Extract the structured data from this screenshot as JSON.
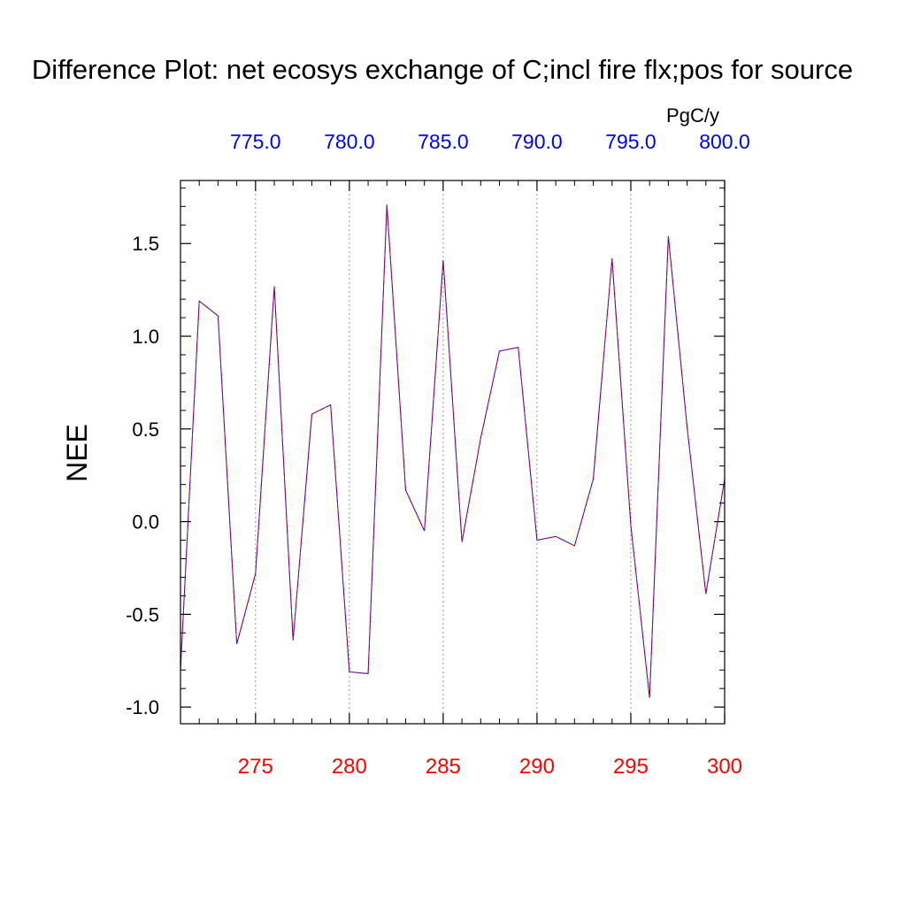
{
  "chart_data": {
    "type": "line",
    "title": "Difference Plot: net ecosys exchange of C;incl fire flx;pos for source",
    "ylabel": "NEE",
    "top_axis_unit": "PgC/y",
    "xlim": [
      271,
      300
    ],
    "ylim": [
      -1.09,
      1.84
    ],
    "top_xlim": [
      771,
      800
    ],
    "x_ticks": [
      275,
      280,
      285,
      290,
      295,
      300
    ],
    "x_tick_labels": [
      "275",
      "280",
      "285",
      "290",
      "295",
      "300"
    ],
    "top_ticks": [
      775,
      780,
      785,
      790,
      795,
      800
    ],
    "top_tick_labels": [
      "775.0",
      "780.0",
      "785.0",
      "790.0",
      "795.0",
      "800.0"
    ],
    "y_ticks": [
      -1.0,
      -0.5,
      0.0,
      0.5,
      1.0,
      1.5
    ],
    "y_tick_labels": [
      "-1.0",
      "-0.5",
      "0.0",
      "0.5",
      "1.0",
      "1.5"
    ],
    "grid": "vertical dotted at top-axis ticks",
    "x": [
      271,
      272,
      273,
      274,
      275,
      276,
      277,
      278,
      279,
      280,
      281,
      282,
      283,
      284,
      285,
      286,
      287,
      288,
      289,
      290,
      291,
      292,
      293,
      294,
      295,
      296,
      297,
      298,
      299,
      300
    ],
    "series": [
      {
        "color": "#0000ff",
        "style": "solid",
        "values": [
          -0.8,
          1.19,
          1.11,
          -0.66,
          -0.28,
          1.27,
          -0.64,
          0.58,
          0.63,
          -0.81,
          -0.82,
          1.71,
          0.17,
          -0.05,
          1.41,
          -0.11,
          0.45,
          0.92,
          0.94,
          -0.1,
          -0.08,
          -0.13,
          0.23,
          1.42,
          -0.02,
          -0.95,
          1.54,
          0.51,
          -0.39,
          0.23
        ]
      },
      {
        "color": "#ff0000",
        "style": "dashed",
        "values": [
          -0.8,
          1.19,
          1.11,
          -0.66,
          -0.28,
          1.27,
          -0.64,
          0.58,
          0.63,
          -0.81,
          -0.82,
          1.71,
          0.17,
          -0.05,
          1.41,
          -0.11,
          0.45,
          0.92,
          0.94,
          -0.1,
          -0.08,
          -0.13,
          0.23,
          1.42,
          -0.02,
          -0.95,
          1.54,
          0.51,
          -0.39,
          0.23
        ]
      }
    ],
    "colors": {
      "bottom_axis": "#ff0000",
      "top_axis": "#0000ff",
      "frame": "#000000"
    }
  }
}
